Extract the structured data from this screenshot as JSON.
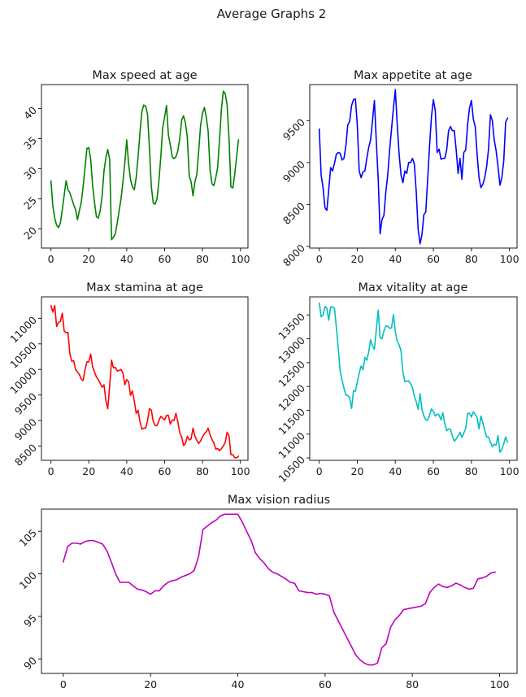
{
  "figure": {
    "suptitle": "Average Graphs 2"
  },
  "chart_data": [
    {
      "id": "speed",
      "type": "line",
      "title": "Max speed at age",
      "xlabel": "",
      "ylabel": "",
      "color": "#008000",
      "grid": false,
      "xlim": [
        -5,
        104
      ],
      "ylim": [
        16.8,
        44
      ],
      "xticks": [
        0,
        20,
        40,
        60,
        80,
        100
      ],
      "yticks": [
        20,
        25,
        30,
        35,
        40
      ],
      "x_start": 0,
      "values": [
        28,
        23.8,
        21.8,
        20.6,
        20.2,
        21,
        23.2,
        25.6,
        28,
        26.5,
        26,
        25,
        24,
        23.2,
        21.5,
        23,
        24.4,
        27,
        30.2,
        33.4,
        33.5,
        31.5,
        27.2,
        24.4,
        22,
        21.8,
        23,
        25.4,
        29.6,
        31.8,
        33.2,
        31.5,
        18.2,
        18.6,
        19.2,
        21,
        23,
        25,
        27.8,
        31,
        34.8,
        30.8,
        28.2,
        27,
        26.5,
        28.5,
        32,
        36,
        39.5,
        40.6,
        40.4,
        39,
        33.4,
        27,
        24.3,
        24.1,
        25,
        28,
        32,
        36.8,
        38.6,
        40.5,
        35.6,
        34,
        32,
        31.7,
        32,
        33,
        35,
        38.1,
        38.8,
        37.6,
        35.2,
        28.8,
        27.8,
        25.5,
        27.8,
        29,
        33,
        37.2,
        39.2,
        40.2,
        38.6,
        36.2,
        29.8,
        27.5,
        27.2,
        28.5,
        30.2,
        34.8,
        40,
        42.9,
        42.5,
        40.6,
        35,
        27,
        26.8,
        29,
        32,
        34.8
      ]
    },
    {
      "id": "appetite",
      "type": "line",
      "title": "Max appetite at age",
      "xlabel": "",
      "ylabel": "",
      "color": "#0000ff",
      "grid": false,
      "xlim": [
        -5,
        104
      ],
      "ylim": [
        7980,
        9930
      ],
      "xticks": [
        0,
        20,
        40,
        60,
        80,
        100
      ],
      "yticks": [
        8000,
        8500,
        9000,
        9500
      ],
      "x_start": 0,
      "values": [
        9400,
        8850,
        8700,
        8460,
        8430,
        8680,
        8940,
        8900,
        8990,
        9100,
        9120,
        9110,
        9030,
        9050,
        9200,
        9450,
        9490,
        9680,
        9750,
        9760,
        9450,
        8900,
        8820,
        8890,
        8900,
        9050,
        9180,
        9270,
        9500,
        9740,
        9250,
        8800,
        8150,
        8320,
        8370,
        8650,
        8850,
        9150,
        9400,
        9650,
        9870,
        9450,
        9100,
        8850,
        8760,
        8900,
        8870,
        9000,
        9000,
        9050,
        8980,
        8650,
        8200,
        8030,
        8140,
        8380,
        8410,
        8800,
        9200,
        9550,
        9750,
        9620,
        9120,
        9160,
        9040,
        9050,
        9050,
        9150,
        9380,
        9430,
        9380,
        9380,
        9150,
        8870,
        9050,
        8800,
        9120,
        9150,
        9450,
        9650,
        9740,
        9520,
        9430,
        9100,
        8820,
        8700,
        8740,
        8820,
        8950,
        9160,
        9570,
        9500,
        9270,
        9140,
        8950,
        8730,
        8820,
        9020,
        9480,
        9530
      ]
    },
    {
      "id": "stamina",
      "type": "line",
      "title": "Max stamina at age",
      "xlabel": "",
      "ylabel": "",
      "color": "#ff0000",
      "grid": false,
      "xlim": [
        -5,
        104
      ],
      "ylim": [
        8220,
        11420
      ],
      "xticks": [
        0,
        20,
        40,
        60,
        80,
        100
      ],
      "yticks": [
        8500,
        9000,
        9500,
        10000,
        10500,
        11000
      ],
      "x_start": 0,
      "values": [
        11250,
        11120,
        11250,
        10840,
        10920,
        10940,
        11100,
        10750,
        10720,
        10720,
        10300,
        10160,
        10170,
        10000,
        9950,
        9900,
        9810,
        9780,
        10000,
        10150,
        10150,
        10300,
        10050,
        9950,
        9850,
        9800,
        9730,
        9650,
        9700,
        9390,
        9230,
        9670,
        10180,
        10030,
        10040,
        9970,
        9980,
        10000,
        9930,
        9700,
        9800,
        9760,
        9490,
        9580,
        9380,
        9140,
        9200,
        8980,
        8830,
        8850,
        8850,
        9000,
        9230,
        9200,
        8980,
        8900,
        8900,
        9000,
        9080,
        9050,
        9010,
        9100,
        9100,
        8930,
        9010,
        9000,
        9140,
        8970,
        8760,
        8680,
        8510,
        8550,
        8690,
        8620,
        8640,
        8850,
        8690,
        8610,
        8550,
        8600,
        8680,
        8740,
        8780,
        8850,
        8720,
        8630,
        8560,
        8440,
        8450,
        8410,
        8450,
        8500,
        8570,
        8770,
        8700,
        8330,
        8330,
        8270,
        8270,
        8300
      ]
    },
    {
      "id": "vitality",
      "type": "line",
      "title": "Max vitality at age",
      "xlabel": "",
      "ylabel": "",
      "color": "#00bfbf",
      "grid": false,
      "xlim": [
        -5,
        104
      ],
      "ylim": [
        10450,
        13880
      ],
      "xticks": [
        0,
        20,
        40,
        60,
        80,
        100
      ],
      "yticks": [
        10500,
        11000,
        11500,
        12000,
        12500,
        13000,
        13500
      ],
      "x_start": 0,
      "values": [
        13750,
        13460,
        13500,
        13680,
        13640,
        13390,
        13670,
        13670,
        13640,
        13240,
        12800,
        12320,
        12130,
        11960,
        11820,
        11810,
        11760,
        11540,
        11910,
        11900,
        12090,
        12280,
        12430,
        12350,
        12610,
        12550,
        12720,
        12980,
        12850,
        12780,
        13200,
        13600,
        13020,
        13000,
        13160,
        13270,
        13260,
        13220,
        13230,
        13510,
        13150,
        12950,
        12870,
        12750,
        12300,
        12100,
        12110,
        12120,
        12060,
        11980,
        11790,
        11680,
        11520,
        11850,
        11520,
        11380,
        11300,
        11290,
        11400,
        11530,
        11480,
        11380,
        11420,
        11400,
        11300,
        11450,
        11220,
        11070,
        11110,
        11100,
        10960,
        10850,
        10900,
        10960,
        11040,
        10930,
        11020,
        11120,
        11430,
        11440,
        11360,
        11470,
        11410,
        11350,
        11110,
        11380,
        11240,
        11080,
        10940,
        10940,
        10830,
        10740,
        10790,
        10770,
        10970,
        10620,
        10680,
        10800,
        10940,
        10830
      ]
    },
    {
      "id": "vision",
      "type": "line",
      "title": "Max vision radius",
      "xlabel": "",
      "ylabel": "",
      "color": "#bf00bf",
      "grid": false,
      "xlim": [
        -5,
        104
      ],
      "ylim": [
        88.3,
        107.6
      ],
      "xticks": [
        0,
        20,
        40,
        60,
        80,
        100
      ],
      "yticks": [
        90,
        95,
        100,
        105
      ],
      "x_start": 0,
      "values": [
        101.4,
        103.2,
        103.6,
        103.6,
        103.5,
        103.8,
        103.9,
        103.9,
        103.7,
        103.5,
        102.7,
        101.4,
        100,
        99,
        99,
        99,
        98.6,
        98.2,
        98.1,
        97.9,
        97.6,
        98,
        98,
        98.6,
        99,
        99.2,
        99.3,
        99.6,
        99.8,
        100,
        100.4,
        102,
        105.2,
        105.6,
        106,
        106.3,
        106.8,
        107,
        107,
        107,
        107,
        106.1,
        105,
        104,
        102.5,
        101.8,
        101.3,
        100.6,
        100.2,
        100,
        99.7,
        99.4,
        99,
        98.9,
        98,
        97.9,
        97.8,
        97.8,
        97.6,
        97.7,
        97.6,
        97.4,
        95.5,
        94.5,
        93.5,
        92.5,
        91.5,
        90.5,
        89.9,
        89.5,
        89.3,
        89.3,
        89.5,
        91.3,
        91.8,
        93.7,
        94.6,
        95.1,
        95.8,
        95.9,
        96,
        96.1,
        96.2,
        96.5,
        97.8,
        98.4,
        98.8,
        98.5,
        98.4,
        98.6,
        98.9,
        98.7,
        98.4,
        98.2,
        98.3,
        99.4,
        99.5,
        99.7,
        100.1,
        100.2
      ]
    }
  ]
}
